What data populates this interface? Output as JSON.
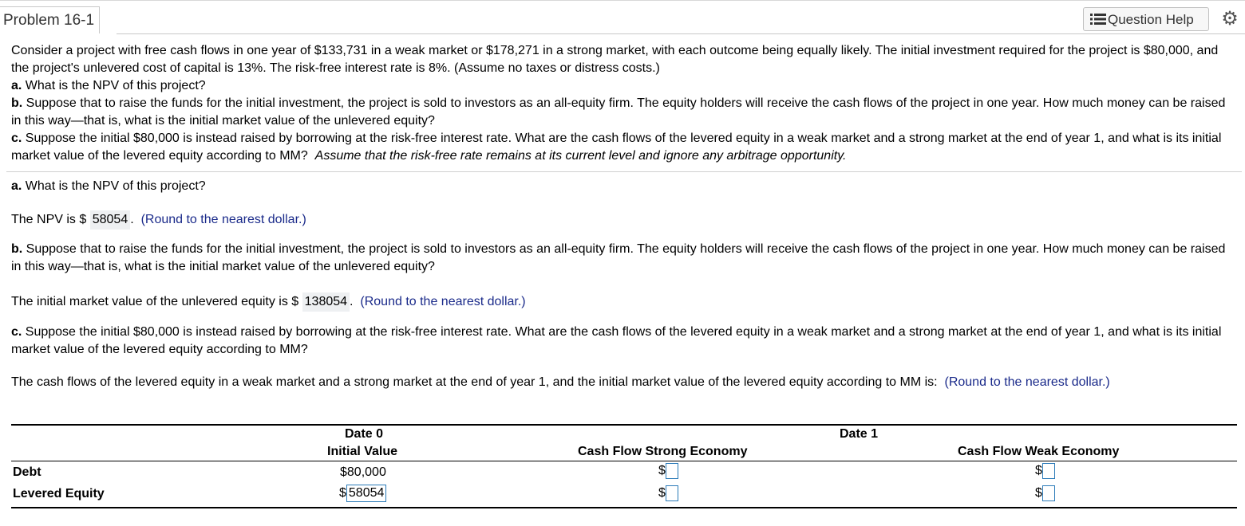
{
  "header": {
    "problem_title": "Problem 16-1",
    "question_help_label": "Question Help",
    "settings_icon": "gear-icon"
  },
  "question": {
    "intro": "Consider a project with free cash flows in one year of $133,731 in a weak market or $178,271 in a strong market, with each outcome being equally likely. The initial investment required for the project is $80,000, and the project's unlevered cost of capital is 13%. The risk-free interest rate is 8%. (Assume no taxes or distress costs.)",
    "a_label": "a.",
    "a_text": " What is the NPV of this project?",
    "b_label": "b.",
    "b_text": " Suppose that to raise the funds for the initial investment, the project is sold to investors as an all-equity firm. The equity holders will receive the cash flows of the project in one year. How much money can be raised in this way—that is, what is the initial market value of the unlevered equity?",
    "c_label": "c.",
    "c_text": " Suppose the initial $80,000 is instead raised by borrowing at the risk-free interest rate. What are the cash flows of the levered equity in a weak market and a strong market at the end of year 1, and what is its initial market value of the levered equity according to MM?",
    "c_italic": "Assume that the risk-free rate remains at its current level and ignore any arbitrage opportunity."
  },
  "answers": {
    "a_heading_label": "a.",
    "a_heading_text": " What is the NPV of this project?",
    "npv_prefix": "The NPV is $",
    "npv_value": "58054",
    "npv_suffix": ".",
    "round_hint": "(Round to the nearest dollar.)",
    "b_heading_label": "b.",
    "b_heading_text": " Suppose that to raise the funds for the initial investment, the project is sold to investors as an all-equity firm. The equity holders will receive the cash flows of the project in one year. How much money can be raised in this way—that is, what is the initial market value of the unlevered equity?",
    "unlev_prefix": "The initial market value of the unlevered equity is $",
    "unlev_value": "138054",
    "unlev_suffix": ".",
    "c_heading_label": "c.",
    "c_heading_text": " Suppose the initial $80,000 is instead raised by borrowing at the risk-free interest rate. What are the cash flows of the levered equity in a weak market and a strong market at the end of year 1, and what is its initial market value of the levered equity according to MM?",
    "c_prompt": "The cash flows of the levered equity in a weak market and a strong market at the end of year 1, and the initial market value of the levered equity according to MM is:",
    "c_hint": "(Round to the nearest dollar.)"
  },
  "table": {
    "date0": "Date 0",
    "date1": "Date 1",
    "col_initial": "Initial Value",
    "col_strong": "Cash Flow Strong Economy",
    "col_weak": "Cash Flow Weak Economy",
    "currency": "$",
    "rows": [
      {
        "label": "Debt",
        "initial": "$80,000"
      },
      {
        "label": "Levered Equity",
        "initial": "58054"
      }
    ]
  }
}
